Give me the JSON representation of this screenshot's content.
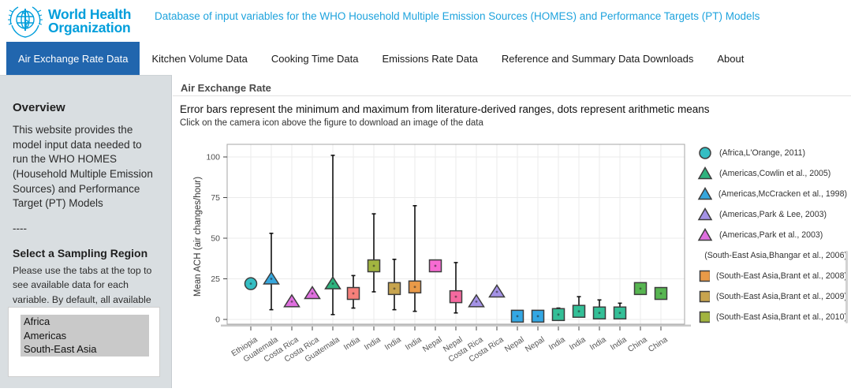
{
  "header": {
    "logo_line1": "World Health",
    "logo_line2": "Organization",
    "title": "Database of input variables for the WHO Household Multiple Emission Sources (HOMES) and Performance Targets (PT) Models",
    "brand_color": "#009edb"
  },
  "nav": {
    "active_bg": "#2166ae",
    "tabs": [
      {
        "label": "Air Exchange Rate Data",
        "active": true
      },
      {
        "label": "Kitchen Volume Data",
        "active": false
      },
      {
        "label": "Cooking Time Data",
        "active": false
      },
      {
        "label": "Emissions Rate Data",
        "active": false
      },
      {
        "label": "Reference and Summary Data Downloads",
        "active": false
      },
      {
        "label": "About",
        "active": false
      }
    ]
  },
  "sidebar": {
    "overview_heading": "Overview",
    "overview_text": "This website provides the model input data needed to run the WHO HOMES (Household Multiple Emission Sources) and Performance Target (PT) Models",
    "divider": "----",
    "region_heading": "Select a Sampling Region",
    "region_help": "Please use the tabs at the top to see available data for each variable. By default, all available selections are made. Select multiple by using control+click (PC) or option+click (Mac).",
    "region_options": [
      {
        "label": "Africa",
        "selected": true
      },
      {
        "label": "Americas",
        "selected": true
      },
      {
        "label": "South-East Asia",
        "selected": true
      }
    ]
  },
  "main": {
    "panel_tab": "Air Exchange Rate",
    "subtitle": "Error bars represent the minimum and maximum from literature-derived ranges, dots represent arithmetic means",
    "hint": "Click on the camera icon above the figure to download an image of the data"
  },
  "chart_data": {
    "type": "scatter",
    "title": "",
    "xlabel": "",
    "ylabel": "Mean ACH (air changes/hour)",
    "yticks": [
      0,
      25,
      50,
      75,
      100
    ],
    "ylim": [
      -3,
      108
    ],
    "grid": true,
    "legend_position": "right",
    "categories": [
      "Ethiopia",
      "Guatemala",
      "Costa Rica",
      "Costa Rica",
      "Guatemala",
      "India",
      "India",
      "India",
      "India",
      "Nepal",
      "Nepal",
      "Costa Rica",
      "Costa Rica",
      "Nepal",
      "Nepal",
      "India",
      "India",
      "India",
      "India",
      "China",
      "China"
    ],
    "points": [
      {
        "x": "Ethiopia",
        "mean": 22,
        "min": null,
        "max": null,
        "shape": "circle",
        "color": "#35bec3"
      },
      {
        "x": "Guatemala",
        "mean": 25,
        "min": 6,
        "max": 53,
        "shape": "triangle",
        "color": "#36a7dd"
      },
      {
        "x": "Costa Rica",
        "mean": 11,
        "min": null,
        "max": null,
        "shape": "triangle",
        "color": "#df70df"
      },
      {
        "x": "Costa Rica",
        "mean": 16,
        "min": null,
        "max": null,
        "shape": "triangle",
        "color": "#df70df"
      },
      {
        "x": "Guatemala",
        "mean": 22,
        "min": 3,
        "max": 101,
        "shape": "triangle",
        "color": "#2eb37e"
      },
      {
        "x": "India",
        "mean": 16,
        "min": 7,
        "max": 27,
        "shape": "square",
        "color": "#f5807b"
      },
      {
        "x": "India",
        "mean": 33,
        "min": 17,
        "max": 65,
        "shape": "square",
        "color": "#a2b440"
      },
      {
        "x": "India",
        "mean": 19,
        "min": 6,
        "max": 37,
        "shape": "square",
        "color": "#c7a44e"
      },
      {
        "x": "India",
        "mean": 20,
        "min": 5,
        "max": 70,
        "shape": "square",
        "color": "#e99a48"
      },
      {
        "x": "Nepal",
        "mean": 33,
        "min": null,
        "max": null,
        "shape": "square",
        "color": "#f76bd3"
      },
      {
        "x": "Nepal",
        "mean": 14,
        "min": 4,
        "max": 35,
        "shape": "square",
        "color": "#f4699f"
      },
      {
        "x": "Costa Rica",
        "mean": 11,
        "min": null,
        "max": null,
        "shape": "triangle",
        "color": "#a492e6"
      },
      {
        "x": "Costa Rica",
        "mean": 17,
        "min": null,
        "max": null,
        "shape": "triangle",
        "color": "#a492e6"
      },
      {
        "x": "Nepal",
        "mean": 2,
        "min": null,
        "max": null,
        "shape": "square",
        "color": "#33a7e4"
      },
      {
        "x": "Nepal",
        "mean": 2,
        "min": null,
        "max": null,
        "shape": "square",
        "color": "#33a7e4"
      },
      {
        "x": "India",
        "mean": 3,
        "min": 2,
        "max": 7,
        "shape": "square",
        "color": "#33bf97"
      },
      {
        "x": "India",
        "mean": 5,
        "min": 3,
        "max": 14,
        "shape": "square",
        "color": "#33bf97"
      },
      {
        "x": "India",
        "mean": 4,
        "min": 1,
        "max": 12,
        "shape": "square",
        "color": "#33bf97"
      },
      {
        "x": "India",
        "mean": 4,
        "min": 1,
        "max": 10,
        "shape": "square",
        "color": "#33bf97"
      },
      {
        "x": "China",
        "mean": 19,
        "min": null,
        "max": null,
        "shape": "square",
        "color": "#57b551"
      },
      {
        "x": "China",
        "mean": 16,
        "min": null,
        "max": null,
        "shape": "square",
        "color": "#57b551"
      }
    ],
    "legend": [
      {
        "label": "(Africa,L'Orange, 2011)",
        "shape": "circle",
        "color": "#35bec3"
      },
      {
        "label": "(Americas,Cowlin et al., 2005)",
        "shape": "triangle",
        "color": "#2eb37e"
      },
      {
        "label": "(Americas,McCracken et al., 1998)",
        "shape": "triangle",
        "color": "#36a7dd"
      },
      {
        "label": "(Americas,Park & Lee, 2003)",
        "shape": "triangle",
        "color": "#a492e6"
      },
      {
        "label": "(Americas,Park et al., 2003)",
        "shape": "triangle",
        "color": "#df70df"
      },
      {
        "label": "(South-East Asia,Bhangar et al., 2006)",
        "shape": "square",
        "color": "#f5807b"
      },
      {
        "label": "(South-East Asia,Brant et al., 2008)",
        "shape": "square",
        "color": "#e99a48"
      },
      {
        "label": "(South-East Asia,Brant et al., 2009)",
        "shape": "square",
        "color": "#c7a44e"
      },
      {
        "label": "(South-East Asia,Brant et al., 2010)",
        "shape": "square",
        "color": "#a2b440"
      }
    ]
  }
}
